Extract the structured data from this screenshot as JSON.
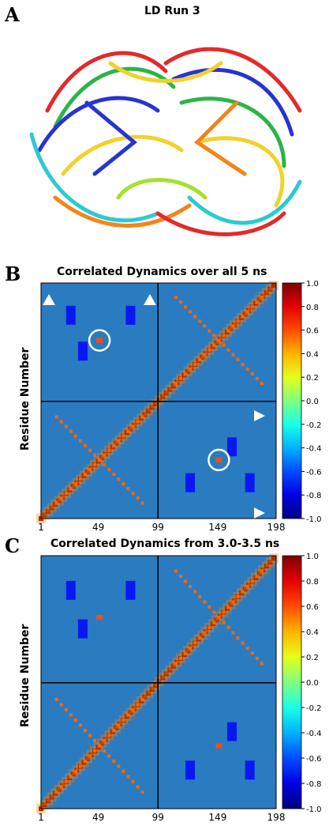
{
  "panels": {
    "A": {
      "letter": "A",
      "title": "LD Run 3"
    },
    "B": {
      "letter": "B",
      "title": "Correlated Dynamics over all 5 ns",
      "ylabel": "Residue Number"
    },
    "C": {
      "letter": "C",
      "title": "Correlated Dynamics from 3.0-3.5 ns",
      "ylabel": "Residue Number"
    }
  },
  "chart_data": [
    {
      "type": "heatmap",
      "title": "Correlated Dynamics over all 5 ns",
      "ylabel": "Residue Number",
      "xlabel": "",
      "x_tick_labels": [
        "1",
        "49",
        "99",
        "149",
        "198"
      ],
      "x_ticks": [
        1,
        49,
        99,
        149,
        198
      ],
      "divider_lines": [
        99
      ],
      "colorbar_ticks": [
        "1.0",
        "0.8",
        "0.6",
        "0.4",
        "0.2",
        "0.0",
        "-0.2",
        "-0.4",
        "-0.6",
        "-0.8",
        "-1.0"
      ],
      "clim": [
        -1.0,
        1.0
      ],
      "colormap": "jet",
      "markers": {
        "circles": 2,
        "triangles": 4
      }
    },
    {
      "type": "heatmap",
      "title": "Correlated Dynamics from 3.0-3.5 ns",
      "ylabel": "Residue Number",
      "xlabel": "",
      "x_tick_labels": [
        "1",
        "49",
        "99",
        "149",
        "198"
      ],
      "x_ticks": [
        1,
        49,
        99,
        149,
        198
      ],
      "divider_lines": [
        99
      ],
      "colorbar_ticks": [
        "1.0",
        "0.8",
        "0.6",
        "0.4",
        "0.2",
        "0.0",
        "-0.2",
        "-0.4",
        "-0.6",
        "-0.8",
        "-1.0"
      ],
      "clim": [
        -1.0,
        1.0
      ],
      "colormap": "jet"
    }
  ],
  "colors": {
    "background": "#2b7bc0",
    "positive": "#d21f1f",
    "negative": "#1c2a86",
    "marker": "#ffffff"
  }
}
